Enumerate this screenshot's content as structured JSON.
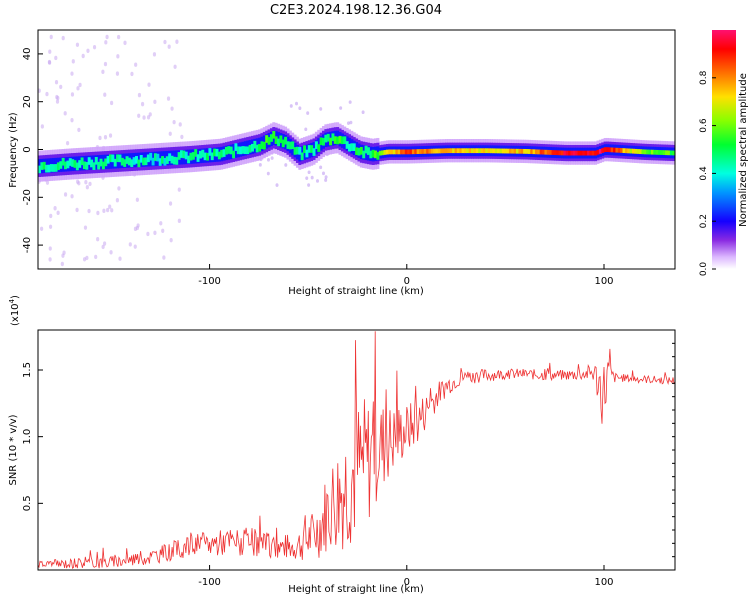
{
  "figure_title": "C2E3.2024.198.12.36.G04",
  "chart_data": [
    {
      "type": "heatmap",
      "title": "",
      "xlabel": "Height of straight line (km)",
      "ylabel": "Frequency (Hz)",
      "xlim": [
        -187,
        136
      ],
      "ylim": [
        -50,
        50
      ],
      "x_ticks": [
        -100,
        0,
        100
      ],
      "y_ticks": [
        -40,
        -20,
        0,
        20,
        40
      ],
      "colorbar": {
        "label": "Normalized spectral amplitude",
        "range": [
          0,
          1
        ],
        "ticks": [
          0.0,
          0.2,
          0.4,
          0.6,
          0.8
        ],
        "tick_labels": [
          "0.0",
          "0.2",
          "0.4",
          "0.6",
          "0.8"
        ],
        "colormap": "rainbow"
      },
      "ridge": {
        "description": "dominant frequency ridge",
        "x": [
          -187,
          -170,
          -150,
          -130,
          -110,
          -95,
          -85,
          -75,
          -68,
          -62,
          -55,
          -48,
          -42,
          -36,
          -30,
          -24,
          -18,
          -10,
          0,
          20,
          40,
          60,
          80,
          95,
          100,
          110,
          120,
          136
        ],
        "freq": [
          -7,
          -6,
          -5,
          -4,
          -3,
          -2,
          0,
          2,
          5,
          3,
          -2,
          0,
          4,
          5,
          2,
          -1,
          -2,
          -1,
          -1,
          -0.5,
          -0.5,
          -0.8,
          -1.5,
          -1.5,
          0,
          -0.5,
          -1,
          -1.5
        ],
        "amplitude": [
          0.45,
          0.45,
          0.45,
          0.42,
          0.45,
          0.45,
          0.45,
          0.5,
          0.55,
          0.45,
          0.45,
          0.45,
          0.5,
          0.55,
          0.45,
          0.5,
          0.5,
          0.7,
          0.85,
          0.75,
          0.7,
          0.75,
          0.95,
          0.95,
          0.95,
          0.75,
          0.6,
          0.55
        ]
      }
    },
    {
      "type": "line",
      "title": "",
      "xlabel": "Height of straight line (km)",
      "ylabel": "SNR (10 * v/v)",
      "y_scale_label": "(x10",
      "y_scale_exponent": "4",
      "y_scale_suffix": ")",
      "xlim": [
        -187,
        136
      ],
      "ylim": [
        0,
        1.8
      ],
      "x_ticks": [
        -100,
        0,
        100
      ],
      "y_ticks": [
        0.5,
        1.0,
        1.5
      ],
      "y_tick_labels": [
        "0.5",
        "1.0",
        "1.5"
      ],
      "color": "#ee3333",
      "series": [
        {
          "name": "SNR",
          "x": [
            -187,
            -170,
            -150,
            -140,
            -130,
            -120,
            -110,
            -100,
            -90,
            -80,
            -70,
            -60,
            -52,
            -45,
            -40,
            -35,
            -30,
            -25,
            -20,
            -15,
            -10,
            -5,
            0,
            5,
            10,
            15,
            20,
            25,
            30,
            35,
            40,
            50,
            60,
            70,
            80,
            90,
            95,
            100,
            102,
            105,
            110,
            120,
            136
          ],
          "y": [
            0.04,
            0.05,
            0.06,
            0.08,
            0.1,
            0.14,
            0.18,
            0.2,
            0.22,
            0.2,
            0.18,
            0.17,
            0.2,
            0.3,
            0.45,
            0.55,
            0.65,
            0.75,
            0.8,
            0.9,
            0.95,
            1.0,
            1.05,
            1.1,
            1.2,
            1.3,
            1.38,
            1.42,
            1.45,
            1.45,
            1.46,
            1.47,
            1.47,
            1.46,
            1.46,
            1.47,
            1.48,
            1.3,
            1.5,
            1.44,
            1.44,
            1.43,
            1.42
          ],
          "noise": [
            0.03,
            0.04,
            0.05,
            0.05,
            0.06,
            0.07,
            0.08,
            0.1,
            0.1,
            0.12,
            0.1,
            0.1,
            0.14,
            0.22,
            0.32,
            0.42,
            0.5,
            0.55,
            0.5,
            0.4,
            0.3,
            0.25,
            0.2,
            0.18,
            0.14,
            0.1,
            0.08,
            0.06,
            0.05,
            0.05,
            0.05,
            0.04,
            0.04,
            0.04,
            0.04,
            0.05,
            0.08,
            0.3,
            0.1,
            0.04,
            0.03,
            0.03,
            0.03
          ]
        }
      ]
    }
  ]
}
